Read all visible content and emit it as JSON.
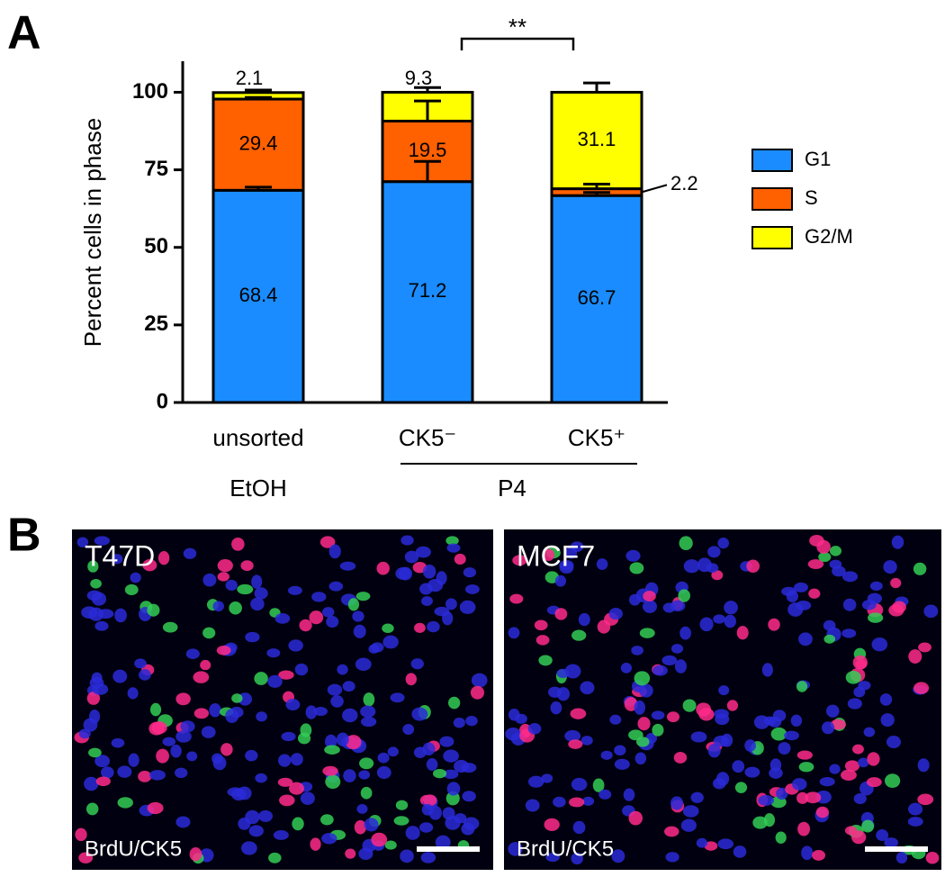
{
  "panel_labels": [
    "A",
    "B"
  ],
  "chart_data": {
    "type": "bar",
    "stacked": true,
    "ylabel": "Percent cells in phase",
    "categories": [
      "unsorted",
      "CK5⁻",
      "CK5⁺"
    ],
    "groups": [
      "EtOH",
      "P4"
    ],
    "series": [
      {
        "name": "G1",
        "color": "#1a8cff",
        "values": [
          68.4,
          71.2,
          66.7
        ],
        "errors": [
          1,
          6.5,
          1
        ]
      },
      {
        "name": "S",
        "color": "#ff6000",
        "values": [
          29.4,
          19.5,
          2.2
        ],
        "errors": [
          0.5,
          6.5,
          1.5
        ]
      },
      {
        "name": "G2/M",
        "color": "#ffff00",
        "values": [
          2.1,
          9.3,
          31.1
        ],
        "errors": [
          0.8,
          1.5,
          3
        ]
      }
    ],
    "ylim": [
      0,
      110
    ],
    "yticks": [
      0,
      25,
      50,
      75,
      100
    ],
    "legend": "right",
    "annotations": [
      {
        "text": "**"
      }
    ]
  },
  "images": [
    {
      "label": "T47D",
      "stain": "BrdU/CK5"
    },
    {
      "label": "MCF7",
      "stain": "BrdU/CK5"
    }
  ]
}
